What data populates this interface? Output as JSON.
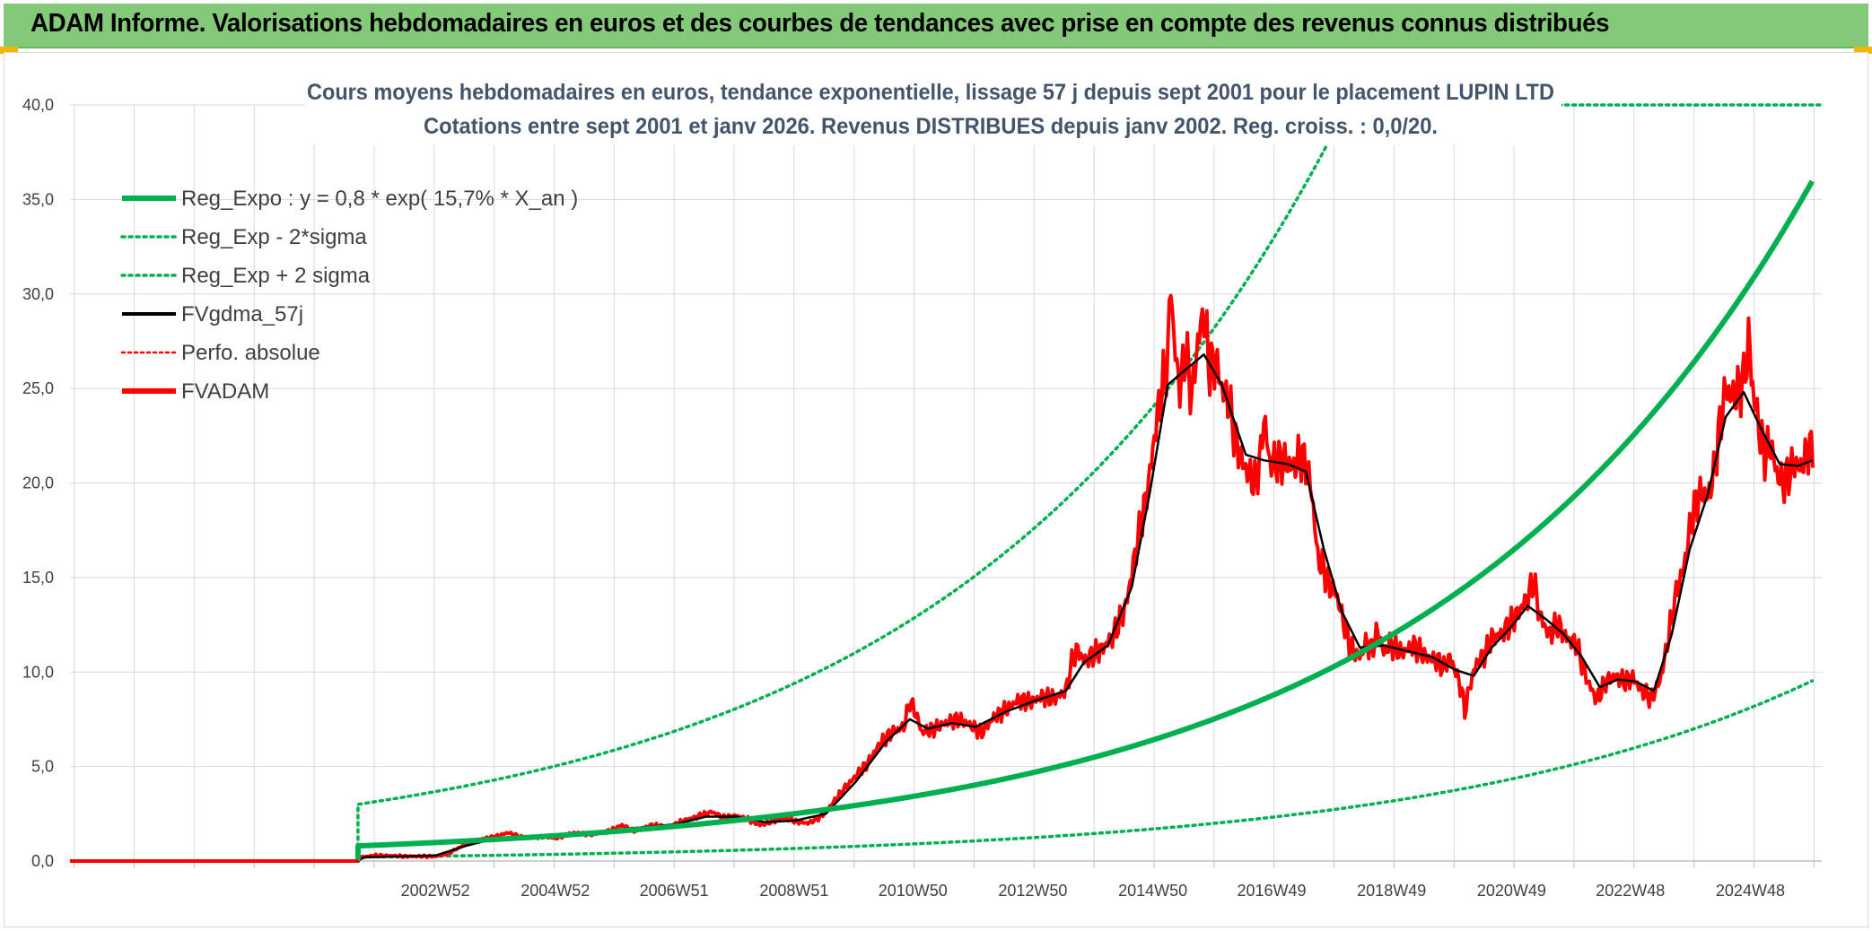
{
  "header": {
    "title": "ADAM Informe. Valorisations hebdomadaires en euros et des courbes de tendances avec prise en compte des revenus connus distribués"
  },
  "colors": {
    "banner": "#84c879",
    "trend": "#00b050",
    "price": "#ff0000",
    "smooth": "#000000",
    "grid": "#d9d9d9",
    "corner": "#f2b705"
  },
  "chart_data": {
    "type": "line",
    "title_lines": [
      "Cours moyens hebdomadaires en euros, tendance exponentielle, lissage 57 j depuis sept 2001 pour le placement LUPIN LTD",
      "Cotations entre sept 2001 et janv 2026. Revenus DISTRIBUES depuis janv 2002. Reg. croiss. : 0,0/20."
    ],
    "ylim": [
      0,
      40
    ],
    "xlim": [
      1996.9,
      2026.1
    ],
    "y_ticks": [
      {
        "value": 0,
        "label": "0,0"
      },
      {
        "value": 5,
        "label": "5,0"
      },
      {
        "value": 10,
        "label": "10,0"
      },
      {
        "value": 15,
        "label": "15,0"
      },
      {
        "value": 20,
        "label": "20,0"
      },
      {
        "value": 25,
        "label": "25,0"
      },
      {
        "value": 30,
        "label": "30,0"
      },
      {
        "value": 35,
        "label": "35,0"
      },
      {
        "value": 40,
        "label": "40,0"
      }
    ],
    "x_ticks": [
      {
        "value": 2002.99,
        "label": "2002W52"
      },
      {
        "value": 2004.99,
        "label": "2004W52"
      },
      {
        "value": 2006.97,
        "label": "2006W51"
      },
      {
        "value": 2008.97,
        "label": "2008W51"
      },
      {
        "value": 2010.95,
        "label": "2010W50"
      },
      {
        "value": 2012.95,
        "label": "2012W50"
      },
      {
        "value": 2014.95,
        "label": "2014W50"
      },
      {
        "value": 2016.93,
        "label": "2016W49"
      },
      {
        "value": 2018.93,
        "label": "2018W49"
      },
      {
        "value": 2020.93,
        "label": "2020W49"
      },
      {
        "value": 2022.91,
        "label": "2022W48"
      },
      {
        "value": 2024.91,
        "label": "2024W48"
      }
    ],
    "legend": [
      {
        "label": "Reg_Expo : y = 0,8 * exp( 15,7% *  X_an )",
        "color": "#00b050",
        "style": "solid-thick"
      },
      {
        "label": "Reg_Exp - 2*sigma",
        "color": "#00b050",
        "style": "dotted"
      },
      {
        "label": "Reg_Exp + 2 sigma",
        "color": "#00b050",
        "style": "dotted"
      },
      {
        "label": "FVgdma_57j",
        "color": "#000000",
        "style": "solid"
      },
      {
        "label": "Perfo. absolue",
        "color": "#ff0000",
        "style": "dotted-thin"
      },
      {
        "label": "FVADAM",
        "color": "#ff0000",
        "style": "solid-thick"
      }
    ],
    "trend": {
      "start_x": 2001.7,
      "end_x": 2025.95,
      "a": 0.8,
      "growth": 0.157,
      "lower_factor": 0.265,
      "upper_factor": 3.75,
      "upper_cap": 40
    },
    "fvadam_series": [
      [
        1996.9,
        0
      ],
      [
        2001.7,
        0
      ],
      [
        2001.75,
        0.2
      ],
      [
        2002.0,
        0.3
      ],
      [
        2002.5,
        0.25
      ],
      [
        2003.0,
        0.25
      ],
      [
        2003.2,
        0.4
      ],
      [
        2003.5,
        0.9
      ],
      [
        2003.8,
        1.2
      ],
      [
        2004.0,
        1.3
      ],
      [
        2004.2,
        1.5
      ],
      [
        2004.5,
        1.2
      ],
      [
        2004.8,
        1.3
      ],
      [
        2005.0,
        1.2
      ],
      [
        2005.3,
        1.5
      ],
      [
        2005.6,
        1.4
      ],
      [
        2005.9,
        1.6
      ],
      [
        2006.1,
        1.9
      ],
      [
        2006.3,
        1.6
      ],
      [
        2006.6,
        1.9
      ],
      [
        2006.9,
        1.8
      ],
      [
        2007.1,
        2.1
      ],
      [
        2007.4,
        2.4
      ],
      [
        2007.6,
        2.6
      ],
      [
        2007.8,
        2.3
      ],
      [
        2008.0,
        2.4
      ],
      [
        2008.2,
        2.2
      ],
      [
        2008.4,
        1.9
      ],
      [
        2008.6,
        2.1
      ],
      [
        2008.8,
        2.3
      ],
      [
        2009.0,
        2.1
      ],
      [
        2009.2,
        2.0
      ],
      [
        2009.4,
        2.3
      ],
      [
        2009.6,
        3.0
      ],
      [
        2009.8,
        3.8
      ],
      [
        2010.0,
        4.5
      ],
      [
        2010.2,
        5.2
      ],
      [
        2010.4,
        6.2
      ],
      [
        2010.6,
        6.8
      ],
      [
        2010.8,
        7.1
      ],
      [
        2010.9,
        8.5
      ],
      [
        2011.0,
        7.8
      ],
      [
        2011.1,
        6.8
      ],
      [
        2011.3,
        7.0
      ],
      [
        2011.5,
        7.3
      ],
      [
        2011.7,
        7.5
      ],
      [
        2011.9,
        7.2
      ],
      [
        2012.1,
        6.8
      ],
      [
        2012.3,
        7.6
      ],
      [
        2012.5,
        8.0
      ],
      [
        2012.7,
        8.5
      ],
      [
        2012.9,
        8.4
      ],
      [
        2013.1,
        8.7
      ],
      [
        2013.3,
        8.6
      ],
      [
        2013.5,
        9.0
      ],
      [
        2013.6,
        10.5
      ],
      [
        2013.7,
        11.2
      ],
      [
        2013.8,
        10.6
      ],
      [
        2013.9,
        10.8
      ],
      [
        2014.1,
        11.2
      ],
      [
        2014.3,
        12.0
      ],
      [
        2014.5,
        13.5
      ],
      [
        2014.7,
        17.0
      ],
      [
        2014.8,
        18.5
      ],
      [
        2014.9,
        20.5
      ],
      [
        2015.0,
        23.0
      ],
      [
        2015.1,
        25.0
      ],
      [
        2015.2,
        26.5
      ],
      [
        2015.25,
        31.0
      ],
      [
        2015.3,
        27.5
      ],
      [
        2015.4,
        25.0
      ],
      [
        2015.5,
        27.0
      ],
      [
        2015.6,
        24.5
      ],
      [
        2015.7,
        27.5
      ],
      [
        2015.8,
        29.0
      ],
      [
        2015.9,
        26.0
      ],
      [
        2016.0,
        26.5
      ],
      [
        2016.1,
        25.0
      ],
      [
        2016.2,
        24.5
      ],
      [
        2016.35,
        22.0
      ],
      [
        2016.45,
        21.0
      ],
      [
        2016.55,
        20.5
      ],
      [
        2016.65,
        20.0
      ],
      [
        2016.75,
        21.5
      ],
      [
        2016.8,
        23.6
      ],
      [
        2016.9,
        21.0
      ],
      [
        2017.1,
        21.2
      ],
      [
        2017.3,
        20.8
      ],
      [
        2017.4,
        21.5
      ],
      [
        2017.5,
        21.0
      ],
      [
        2017.6,
        19.5
      ],
      [
        2017.7,
        16.0
      ],
      [
        2017.8,
        15.5
      ],
      [
        2017.9,
        14.5
      ],
      [
        2018.0,
        14.2
      ],
      [
        2018.1,
        13.0
      ],
      [
        2018.2,
        11.8
      ],
      [
        2018.3,
        11.0
      ],
      [
        2018.4,
        10.8
      ],
      [
        2018.5,
        11.5
      ],
      [
        2018.6,
        11.2
      ],
      [
        2018.7,
        12.2
      ],
      [
        2018.8,
        11.0
      ],
      [
        2018.9,
        11.5
      ],
      [
        2019.1,
        11.0
      ],
      [
        2019.3,
        11.4
      ],
      [
        2019.5,
        10.8
      ],
      [
        2019.7,
        10.6
      ],
      [
        2019.8,
        10.2
      ],
      [
        2019.9,
        10.8
      ],
      [
        2020.0,
        10.0
      ],
      [
        2020.1,
        9.0
      ],
      [
        2020.15,
        7.9
      ],
      [
        2020.25,
        9.5
      ],
      [
        2020.35,
        10.5
      ],
      [
        2020.5,
        11.0
      ],
      [
        2020.6,
        11.8
      ],
      [
        2020.75,
        12.0
      ],
      [
        2020.9,
        12.5
      ],
      [
        2021.05,
        13.2
      ],
      [
        2021.2,
        14.0
      ],
      [
        2021.3,
        14.8
      ],
      [
        2021.4,
        13.0
      ],
      [
        2021.55,
        12.0
      ],
      [
        2021.7,
        12.5
      ],
      [
        2021.85,
        11.8
      ],
      [
        2022.0,
        11.5
      ],
      [
        2022.1,
        10.5
      ],
      [
        2022.2,
        9.5
      ],
      [
        2022.35,
        8.5
      ],
      [
        2022.5,
        9.5
      ],
      [
        2022.65,
        9.8
      ],
      [
        2022.8,
        9.5
      ],
      [
        2022.95,
        9.7
      ],
      [
        2023.1,
        9.0
      ],
      [
        2023.25,
        8.6
      ],
      [
        2023.4,
        9.5
      ],
      [
        2023.5,
        11.0
      ],
      [
        2023.6,
        13.0
      ],
      [
        2023.7,
        14.5
      ],
      [
        2023.8,
        15.5
      ],
      [
        2023.9,
        17.5
      ],
      [
        2024.0,
        19.0
      ],
      [
        2024.1,
        19.5
      ],
      [
        2024.2,
        19.2
      ],
      [
        2024.3,
        20.5
      ],
      [
        2024.4,
        23.0
      ],
      [
        2024.5,
        25.0
      ],
      [
        2024.6,
        24.5
      ],
      [
        2024.7,
        24.8
      ],
      [
        2024.8,
        25.5
      ],
      [
        2024.88,
        27.6
      ],
      [
        2024.95,
        25.0
      ],
      [
        2025.05,
        23.0
      ],
      [
        2025.15,
        21.5
      ],
      [
        2025.25,
        22.0
      ],
      [
        2025.35,
        20.5
      ],
      [
        2025.45,
        20.0
      ],
      [
        2025.55,
        20.5
      ],
      [
        2025.65,
        21.0
      ],
      [
        2025.75,
        20.8
      ],
      [
        2025.85,
        21.5
      ],
      [
        2025.9,
        22.2
      ],
      [
        2025.95,
        20.8
      ]
    ],
    "fvgdma_series": [
      [
        1996.9,
        0
      ],
      [
        2001.7,
        0
      ],
      [
        2001.8,
        0.2
      ],
      [
        2002.5,
        0.25
      ],
      [
        2003.0,
        0.3
      ],
      [
        2003.5,
        0.8
      ],
      [
        2004.0,
        1.2
      ],
      [
        2004.5,
        1.3
      ],
      [
        2005.0,
        1.3
      ],
      [
        2005.5,
        1.45
      ],
      [
        2006.0,
        1.65
      ],
      [
        2006.5,
        1.8
      ],
      [
        2007.0,
        1.95
      ],
      [
        2007.5,
        2.35
      ],
      [
        2008.0,
        2.35
      ],
      [
        2008.5,
        2.05
      ],
      [
        2009.0,
        2.15
      ],
      [
        2009.5,
        2.5
      ],
      [
        2010.0,
        4.2
      ],
      [
        2010.5,
        6.3
      ],
      [
        2010.9,
        7.5
      ],
      [
        2011.2,
        7.0
      ],
      [
        2011.6,
        7.3
      ],
      [
        2012.0,
        7.1
      ],
      [
        2012.5,
        7.9
      ],
      [
        2013.0,
        8.5
      ],
      [
        2013.5,
        9.0
      ],
      [
        2013.8,
        10.5
      ],
      [
        2014.2,
        11.4
      ],
      [
        2014.6,
        14.5
      ],
      [
        2014.9,
        19.5
      ],
      [
        2015.2,
        25.2
      ],
      [
        2015.5,
        26.0
      ],
      [
        2015.8,
        26.8
      ],
      [
        2016.1,
        25.2
      ],
      [
        2016.5,
        21.5
      ],
      [
        2016.8,
        21.2
      ],
      [
        2017.2,
        21.0
      ],
      [
        2017.5,
        20.6
      ],
      [
        2017.8,
        16.5
      ],
      [
        2018.1,
        13.2
      ],
      [
        2018.4,
        11.3
      ],
      [
        2018.8,
        11.4
      ],
      [
        2019.2,
        11.1
      ],
      [
        2019.6,
        10.8
      ],
      [
        2020.0,
        10.1
      ],
      [
        2020.3,
        9.8
      ],
      [
        2020.6,
        11.3
      ],
      [
        2020.9,
        12.3
      ],
      [
        2021.2,
        13.5
      ],
      [
        2021.5,
        12.8
      ],
      [
        2021.8,
        12.0
      ],
      [
        2022.1,
        10.8
      ],
      [
        2022.4,
        9.2
      ],
      [
        2022.7,
        9.6
      ],
      [
        2023.0,
        9.5
      ],
      [
        2023.3,
        9.0
      ],
      [
        2023.6,
        12.0
      ],
      [
        2023.9,
        16.5
      ],
      [
        2024.2,
        19.4
      ],
      [
        2024.5,
        23.5
      ],
      [
        2024.8,
        24.8
      ],
      [
        2025.1,
        22.8
      ],
      [
        2025.4,
        21.0
      ],
      [
        2025.7,
        20.9
      ],
      [
        2025.95,
        21.2
      ]
    ]
  }
}
